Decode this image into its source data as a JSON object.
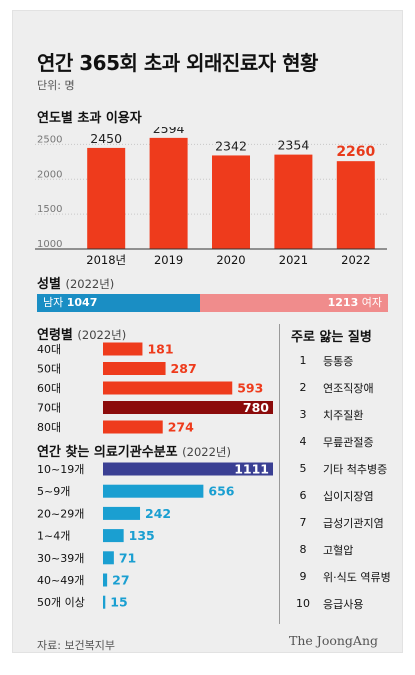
{
  "title": "연간 365회 초과 외래진료자 현황",
  "unit_label": "단위: 명",
  "charts": {
    "yearly": {
      "title": "연도별 초과 이용자"
    },
    "gender": {
      "title": "성별",
      "subtitle": "(2022년)"
    },
    "age": {
      "title": "연령별",
      "subtitle": "(2022년)"
    },
    "facilities": {
      "title": "연간 찾는 의료기관수분포",
      "subtitle": "(2022년)"
    }
  },
  "chart_data": [
    {
      "type": "bar",
      "categories": [
        "2018년",
        "2019",
        "2020",
        "2021",
        "2022"
      ],
      "values": [
        2450,
        2594,
        2342,
        2354,
        2260
      ],
      "yticks": [
        1000,
        1500,
        2000,
        2500
      ],
      "ylim": [
        1000,
        2750
      ],
      "grid": true
    },
    {
      "type": "bar",
      "orientation": "stacked-horizontal",
      "categories": [
        "남자",
        "여자"
      ],
      "values": [
        1047,
        1213
      ]
    },
    {
      "type": "bar",
      "orientation": "horizontal",
      "categories": [
        "40대",
        "50대",
        "60대",
        "70대",
        "80대"
      ],
      "values": [
        181,
        287,
        593,
        780,
        274
      ]
    },
    {
      "type": "bar",
      "orientation": "horizontal",
      "categories": [
        "10~19개",
        "5~9개",
        "20~29개",
        "1~4개",
        "30~39개",
        "40~49개",
        "50개 이상"
      ],
      "values": [
        1111,
        656,
        242,
        135,
        71,
        27,
        15
      ]
    }
  ],
  "colors": {
    "bar_red": "#ee3b1c",
    "highlight_red": "#e83a1b",
    "age_max": "#8b0b0b",
    "male": "#1a8ec4",
    "female": "#f08c8c",
    "fac_max": "#3a3f93",
    "fac_bar": "#1a9fd1"
  },
  "disease_list": {
    "title": "주로 앓는 질병",
    "items": [
      {
        "num": "1",
        "name": "등통증"
      },
      {
        "num": "2",
        "name": "연조직장애"
      },
      {
        "num": "3",
        "name": "치주질환"
      },
      {
        "num": "4",
        "name": "무릎관절증"
      },
      {
        "num": "5",
        "name": "기타 척추병증"
      },
      {
        "num": "6",
        "name": "십이지장염"
      },
      {
        "num": "7",
        "name": "급성기관지염"
      },
      {
        "num": "8",
        "name": "고혈압"
      },
      {
        "num": "9",
        "name": "위·식도 역류병"
      },
      {
        "num": "10",
        "name": "응급사용"
      }
    ]
  },
  "source": "자료: 보건복지부",
  "logo": "The JoongAng"
}
